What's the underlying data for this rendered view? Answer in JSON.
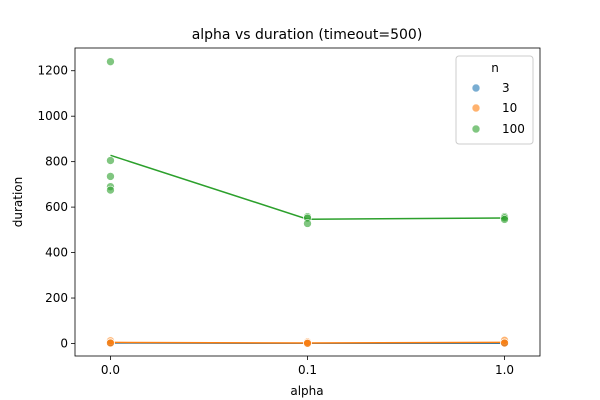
{
  "chart_data": {
    "type": "scatter",
    "title": "alpha vs duration (timeout=500)",
    "xlabel": "alpha",
    "ylabel": "duration",
    "x_categories": [
      "0.0",
      "0.1",
      "1.0"
    ],
    "y_ticks": [
      0,
      200,
      400,
      600,
      800,
      1000,
      1200
    ],
    "ylim": [
      -55,
      1300
    ],
    "grid": false,
    "legend": {
      "title": "n",
      "placement": "top-right",
      "entries": [
        {
          "label": "3",
          "color": "#1f77b4"
        },
        {
          "label": "10",
          "color": "#ff7f0e"
        },
        {
          "label": "100",
          "color": "#2ca02c"
        }
      ]
    },
    "series": [
      {
        "name": "3",
        "color": "#1f77b4",
        "points": [
          {
            "x": "0.0",
            "y": 2
          },
          {
            "x": "0.0",
            "y": 1
          },
          {
            "x": "0.0",
            "y": 3
          },
          {
            "x": "0.1",
            "y": 1
          },
          {
            "x": "0.1",
            "y": 0
          },
          {
            "x": "1.0",
            "y": 1
          },
          {
            "x": "1.0",
            "y": 2
          }
        ],
        "mean_line": [
          {
            "x": "0.0",
            "y": 2
          },
          {
            "x": "0.1",
            "y": 1
          },
          {
            "x": "1.0",
            "y": 1
          }
        ]
      },
      {
        "name": "10",
        "color": "#ff7f0e",
        "points": [
          {
            "x": "0.0",
            "y": 12
          },
          {
            "x": "0.0",
            "y": 4
          },
          {
            "x": "0.0",
            "y": 2
          },
          {
            "x": "0.1",
            "y": 6
          },
          {
            "x": "0.1",
            "y": 2
          },
          {
            "x": "0.1",
            "y": 1
          },
          {
            "x": "1.0",
            "y": 14
          },
          {
            "x": "1.0",
            "y": 3
          },
          {
            "x": "1.0",
            "y": 2
          }
        ],
        "mean_line": [
          {
            "x": "0.0",
            "y": 5
          },
          {
            "x": "0.1",
            "y": 2
          },
          {
            "x": "1.0",
            "y": 5
          }
        ]
      },
      {
        "name": "100",
        "color": "#2ca02c",
        "points": [
          {
            "x": "0.0",
            "y": 1240
          },
          {
            "x": "0.0",
            "y": 805
          },
          {
            "x": "0.0",
            "y": 735
          },
          {
            "x": "0.0",
            "y": 690
          },
          {
            "x": "0.0",
            "y": 675
          },
          {
            "x": "0.1",
            "y": 558
          },
          {
            "x": "0.1",
            "y": 552
          },
          {
            "x": "0.1",
            "y": 528
          },
          {
            "x": "1.0",
            "y": 558
          },
          {
            "x": "1.0",
            "y": 553
          },
          {
            "x": "1.0",
            "y": 546
          }
        ],
        "mean_line": [
          {
            "x": "0.0",
            "y": 828
          },
          {
            "x": "0.1",
            "y": 547
          },
          {
            "x": "1.0",
            "y": 552
          }
        ]
      }
    ]
  }
}
